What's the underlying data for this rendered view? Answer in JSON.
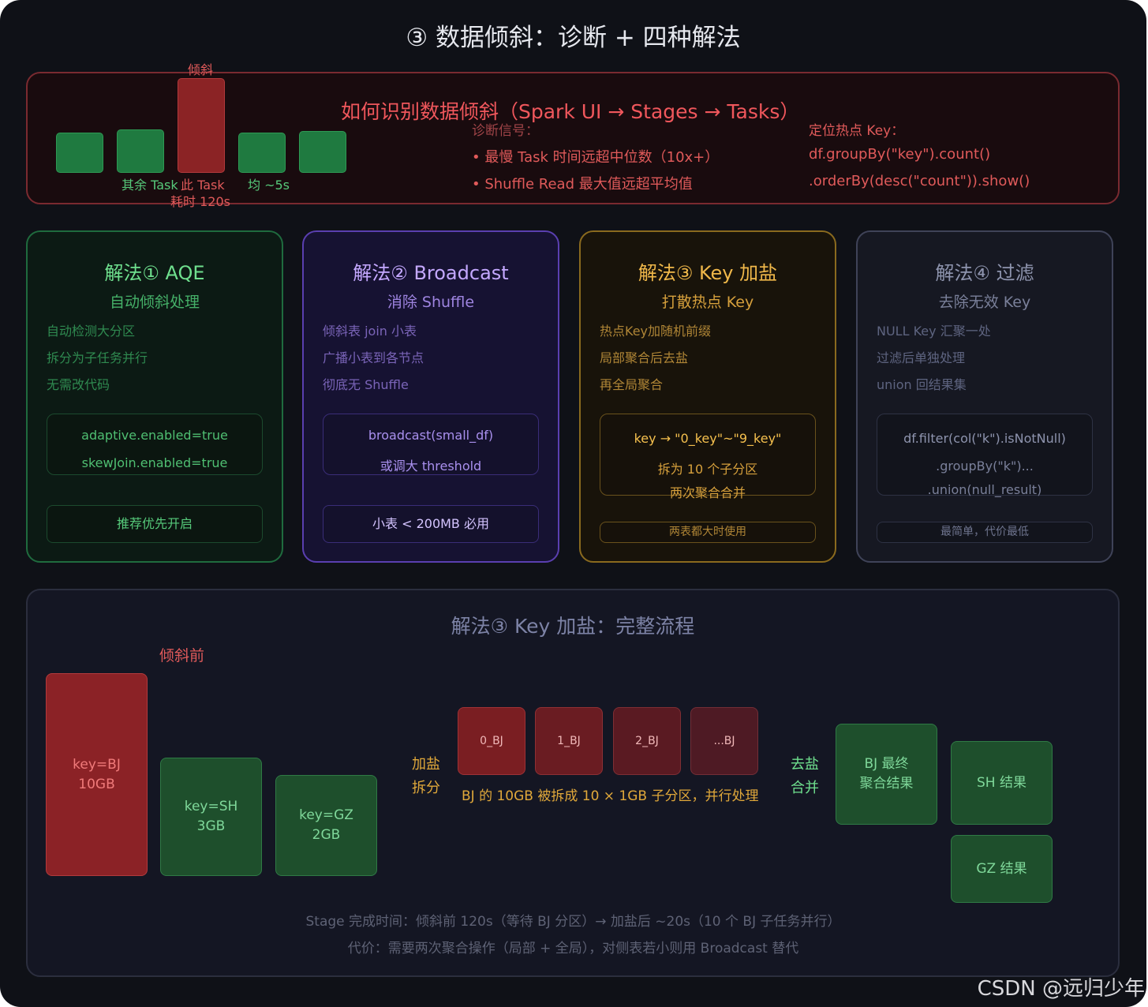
{
  "title": "③ 数据倾斜：诊断 + 四种解法",
  "diagnosis": {
    "heading": "如何识别数据倾斜（Spark UI → Stages → Tasks）",
    "hot_label": "倾斜",
    "label_others": "其余 Task",
    "label_hot_line1": "此 Task",
    "label_hot_line2": "耗时 120s",
    "label_avg": "均 ~5s",
    "signals_title": "诊断信号：",
    "signals": [
      "• 最慢 Task 时间远超中位数（10x+）",
      "• Shuffle Read 最大值远超平均值"
    ],
    "locate_title": "定位热点 Key：",
    "locate_code": [
      "df.groupBy(\"key\").count()",
      ".orderBy(desc(\"count\")).show()"
    ]
  },
  "solutions": [
    {
      "title": "解法① AQE",
      "subtitle": "自动倾斜处理",
      "items": [
        "自动检测大分区",
        "拆分为子任务并行",
        "无需改代码"
      ],
      "code": [
        "adaptive.enabled=true",
        "skewJoin.enabled=true"
      ],
      "tag": "推荐优先开启"
    },
    {
      "title": "解法② Broadcast",
      "subtitle": "消除 Shuffle",
      "items": [
        "倾斜表 join 小表",
        "广播小表到各节点",
        "彻底无 Shuffle"
      ],
      "code": [
        "broadcast(small_df)",
        "或调大 threshold"
      ],
      "tag": "小表 < 200MB 必用"
    },
    {
      "title": "解法③ Key 加盐",
      "subtitle": "打散热点 Key",
      "items": [
        "热点Key加随机前缀",
        "局部聚合后去盐",
        "再全局聚合"
      ],
      "code": [
        "key → \"0_key\"~\"9_key\"",
        "拆为 10 个子分区",
        "两次聚合合并"
      ],
      "tag": "两表都大时使用"
    },
    {
      "title": "解法④ 过滤",
      "subtitle": "去除无效 Key",
      "items": [
        "NULL Key 汇聚一处",
        "过滤后单独处理",
        "union 回结果集"
      ],
      "code": [
        "df.filter(col(\"k\").isNotNull)",
        ".groupBy(\"k\")...",
        ".union(null_result)"
      ],
      "tag": "最简单，代价最低"
    }
  ],
  "flow": {
    "title": "解法③ Key 加盐：完整流程",
    "before_label": "倾斜前",
    "blocks_before": [
      {
        "line1": "key=BJ",
        "line2": "10GB"
      },
      {
        "line1": "key=SH",
        "line2": "3GB"
      },
      {
        "line1": "key=GZ",
        "line2": "2GB"
      }
    ],
    "salt_label": [
      "加盐",
      "拆分"
    ],
    "sub_partitions": [
      "0_BJ",
      "1_BJ",
      "2_BJ",
      "...BJ"
    ],
    "split_caption": "BJ 的 10GB 被拆成 10 × 1GB 子分区，并行处理",
    "desalt_label": [
      "去盐",
      "合并"
    ],
    "final_bj": [
      "BJ 最终",
      "聚合结果"
    ],
    "sh_result": "SH 结果",
    "gz_result": "GZ 结果",
    "note1": "Stage 完成时间：倾斜前 120s（等待 BJ 分区）→ 加盐后 ~20s（10 个 BJ 子任务并行）",
    "note2": "代价：需要两次聚合操作（局部 + 全局），对侧表若小则用 Broadcast 替代"
  },
  "watermark": "CSDN @远归少年",
  "colors": {
    "background": "#0f1117",
    "red": "#e05a5a",
    "green": "#56c97a",
    "purple": "#b79cf0",
    "gold": "#e0a83a",
    "gray": "#8a90a8"
  }
}
